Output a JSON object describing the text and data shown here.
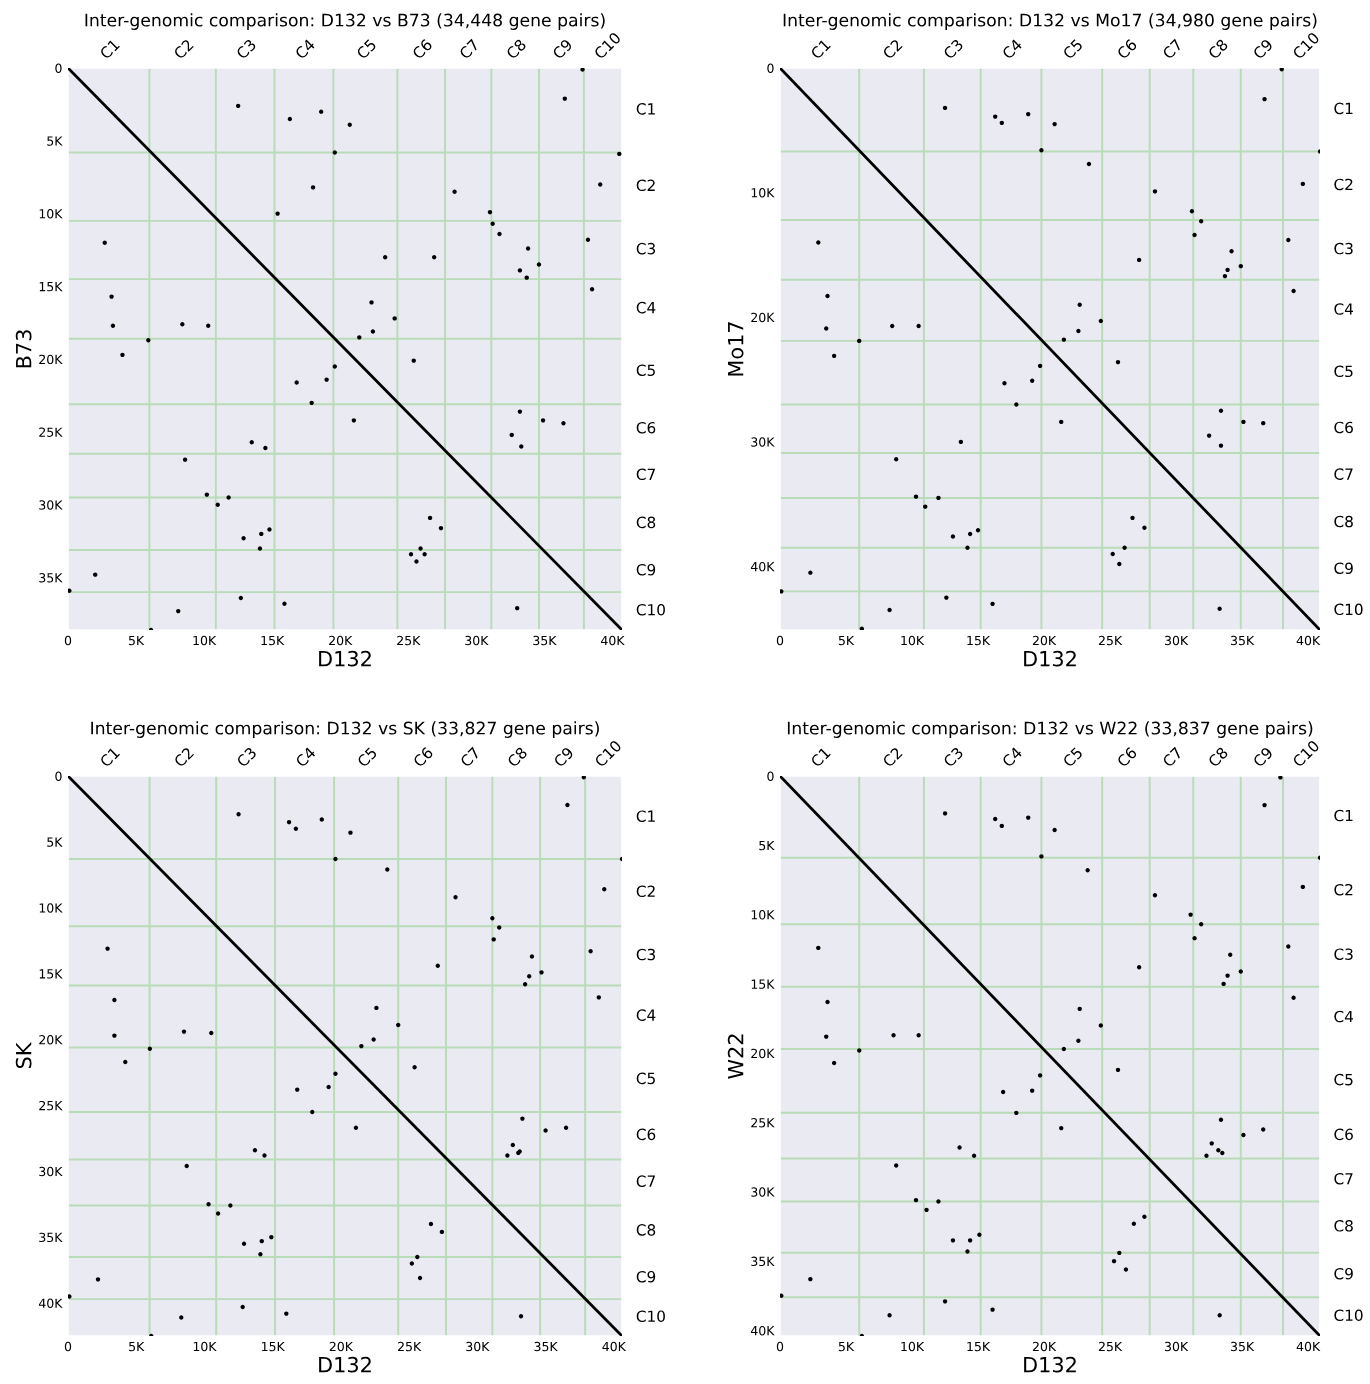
{
  "chart_data": [
    {
      "type": "scatter",
      "title": "Inter-genomic comparison: D132 vs B73 (34,448 gene pairs)",
      "xlabel": "D132",
      "ylabel": "B73",
      "marker": "circle",
      "xlim": [
        0,
        40700
      ],
      "ylim": [
        38600,
        0
      ],
      "xticks": [
        0,
        {
          "value": 5000,
          "label": "5K"
        },
        {
          "value": 10000,
          "label": "10K"
        },
        {
          "value": 15000,
          "label": "15K"
        },
        {
          "value": 20000,
          "label": "20K"
        },
        {
          "value": 25000,
          "label": "25K"
        },
        {
          "value": 30000,
          "label": "30K"
        },
        {
          "value": 35000,
          "label": "35K"
        },
        {
          "value": 40000,
          "label": "40K"
        }
      ],
      "yticks": [
        0,
        {
          "value": 5000,
          "label": "5K"
        },
        {
          "value": 10000,
          "label": "10K"
        },
        {
          "value": 15000,
          "label": "15K"
        },
        {
          "value": 20000,
          "label": "20K"
        },
        {
          "value": 25000,
          "label": "25K"
        },
        {
          "value": 30000,
          "label": "30K"
        },
        {
          "value": 35000,
          "label": "35K"
        }
      ],
      "annotations": [
        "C1",
        "C2",
        "C3",
        "C4",
        "C5",
        "C6",
        "C7",
        "C8",
        "C9",
        "C10",
        "C1",
        "C2",
        "C3",
        "C4",
        "C5",
        "C6",
        "C7",
        "C8",
        "C9",
        "C10"
      ],
      "ref_lines": [
        {
          "axis": "x",
          "value": 5980,
          "color": "#b8dbb8"
        },
        {
          "axis": "x",
          "value": 10860,
          "color": "#b8dbb8"
        },
        {
          "axis": "x",
          "value": 15170,
          "color": "#b8dbb8"
        },
        {
          "axis": "x",
          "value": 19500,
          "color": "#b8dbb8"
        },
        {
          "axis": "x",
          "value": 24200,
          "color": "#b8dbb8"
        },
        {
          "axis": "x",
          "value": 27700,
          "color": "#b8dbb8"
        },
        {
          "axis": "x",
          "value": 31100,
          "color": "#b8dbb8"
        },
        {
          "axis": "x",
          "value": 34600,
          "color": "#b8dbb8"
        },
        {
          "axis": "x",
          "value": 37900,
          "color": "#b8dbb8"
        },
        {
          "axis": "y",
          "value": 5800,
          "color": "#b8dbb8"
        },
        {
          "axis": "y",
          "value": 10500,
          "color": "#b8dbb8"
        },
        {
          "axis": "y",
          "value": 14500,
          "color": "#b8dbb8"
        },
        {
          "axis": "y",
          "value": 18600,
          "color": "#b8dbb8"
        },
        {
          "axis": "y",
          "value": 23100,
          "color": "#b8dbb8"
        },
        {
          "axis": "y",
          "value": 26500,
          "color": "#b8dbb8"
        },
        {
          "axis": "y",
          "value": 29500,
          "color": "#b8dbb8"
        },
        {
          "axis": "y",
          "value": 33100,
          "color": "#b8dbb8"
        },
        {
          "axis": "y",
          "value": 36000,
          "color": "#b8dbb8"
        }
      ],
      "series": [
        {
          "type": "line",
          "marker": "none",
          "color": "#000000",
          "x": [
            0,
            40700
          ],
          "values": [
            0,
            38600
          ]
        },
        {
          "type": "scatter",
          "color": "#000000",
          "x": [
            36500,
            37800,
            19600,
            20700,
            16300,
            18600,
            12500,
            40500,
            39100,
            28400,
            31000,
            31200,
            31700,
            33800,
            34600,
            33200,
            33700,
            38200,
            38500,
            22300,
            24000,
            21400,
            22400,
            19000,
            19600,
            16800,
            17900,
            21000,
            25400,
            4000,
            5900,
            3200,
            3300,
            8400,
            10300,
            2700,
            8600,
            10200,
            11000,
            11800,
            12900,
            14100,
            14200,
            14800,
            100,
            2000,
            6100,
            8100,
            32600,
            33300,
            34900,
            36400,
            33200,
            26600,
            27400,
            25200,
            25600,
            25900,
            26200,
            23300,
            26900,
            18000,
            15400,
            13500,
            14500,
            33000,
            12700,
            15900
          ],
          "values": [
            2100,
            100,
            5800,
            3900,
            3500,
            3000,
            2600,
            5900,
            8000,
            8500,
            9900,
            10700,
            11400,
            12400,
            13500,
            13900,
            14400,
            11800,
            15200,
            16100,
            17200,
            18500,
            18100,
            21400,
            20500,
            21600,
            23000,
            24200,
            20100,
            19700,
            18700,
            15700,
            17700,
            17600,
            17700,
            12000,
            26900,
            29300,
            30000,
            29500,
            32300,
            33000,
            32000,
            31700,
            35900,
            34800,
            38600,
            37300,
            25200,
            26000,
            24200,
            24400,
            23600,
            30900,
            31600,
            33400,
            33900,
            33000,
            33400,
            13000,
            13000,
            8200,
            10000,
            25700,
            26100,
            37100,
            36400,
            36800
          ]
        }
      ]
    },
    {
      "type": "scatter",
      "title": "Inter-genomic comparison: D132 vs Mo17 (34,980 gene pairs)",
      "xlabel": "D132",
      "ylabel": "Mo17",
      "marker": "circle",
      "xlim": [
        0,
        40900
      ],
      "ylim": [
        45100,
        0
      ],
      "xticks": [
        0,
        {
          "value": 5000,
          "label": "5K"
        },
        {
          "value": 10000,
          "label": "10K"
        },
        {
          "value": 15000,
          "label": "15K"
        },
        {
          "value": 20000,
          "label": "20K"
        },
        {
          "value": 25000,
          "label": "25K"
        },
        {
          "value": 30000,
          "label": "30K"
        },
        {
          "value": 35000,
          "label": "35K"
        },
        {
          "value": 40000,
          "label": "40K"
        }
      ],
      "yticks": [
        0,
        {
          "value": 10000,
          "label": "10K"
        },
        {
          "value": 20000,
          "label": "20K"
        },
        {
          "value": 30000,
          "label": "30K"
        },
        {
          "value": 40000,
          "label": "40K"
        }
      ],
      "annotations": [
        "C1",
        "C2",
        "C3",
        "C4",
        "C5",
        "C6",
        "C7",
        "C8",
        "C9",
        "C10",
        "C1",
        "C2",
        "C3",
        "C4",
        "C5",
        "C6",
        "C7",
        "C8",
        "C9",
        "C10"
      ],
      "ref_lines": [
        {
          "axis": "x",
          "value": 6000,
          "color": "#b8dbb8"
        },
        {
          "axis": "x",
          "value": 10900,
          "color": "#b8dbb8"
        },
        {
          "axis": "x",
          "value": 15200,
          "color": "#b8dbb8"
        },
        {
          "axis": "x",
          "value": 19800,
          "color": "#b8dbb8"
        },
        {
          "axis": "x",
          "value": 24400,
          "color": "#b8dbb8"
        },
        {
          "axis": "x",
          "value": 28000,
          "color": "#b8dbb8"
        },
        {
          "axis": "x",
          "value": 31300,
          "color": "#b8dbb8"
        },
        {
          "axis": "x",
          "value": 34900,
          "color": "#b8dbb8"
        },
        {
          "axis": "x",
          "value": 38100,
          "color": "#b8dbb8"
        },
        {
          "axis": "y",
          "value": 6700,
          "color": "#b8dbb8"
        },
        {
          "axis": "y",
          "value": 12200,
          "color": "#b8dbb8"
        },
        {
          "axis": "y",
          "value": 17000,
          "color": "#b8dbb8"
        },
        {
          "axis": "y",
          "value": 21900,
          "color": "#b8dbb8"
        },
        {
          "axis": "y",
          "value": 27000,
          "color": "#b8dbb8"
        },
        {
          "axis": "y",
          "value": 30900,
          "color": "#b8dbb8"
        },
        {
          "axis": "y",
          "value": 34500,
          "color": "#b8dbb8"
        },
        {
          "axis": "y",
          "value": 38500,
          "color": "#b8dbb8"
        },
        {
          "axis": "y",
          "value": 42000,
          "color": "#b8dbb8"
        }
      ],
      "series": [
        {
          "type": "line",
          "marker": "none",
          "color": "#000000",
          "x": [
            0,
            40900
          ],
          "values": [
            0,
            45100
          ]
        },
        {
          "type": "scatter",
          "color": "#000000",
          "x": [
            36700,
            38000,
            19800,
            20800,
            16300,
            16800,
            12500,
            18800,
            40900,
            39600,
            28400,
            31200,
            31900,
            31400,
            34200,
            34900,
            33700,
            33900,
            38500,
            38900,
            22700,
            24300,
            21500,
            22600,
            19100,
            19700,
            17000,
            17900,
            21300,
            25600,
            4100,
            6000,
            3600,
            3500,
            8500,
            10500,
            2900,
            8800,
            10300,
            11000,
            12000,
            13100,
            14200,
            14400,
            15000,
            100,
            2300,
            6200,
            8300,
            32500,
            33400,
            35100,
            36600,
            33400,
            26700,
            27600,
            25200,
            25700,
            26100,
            23400,
            27200,
            13700,
            12600,
            16100,
            33300
          ],
          "values": [
            2500,
            100,
            6600,
            4500,
            3900,
            4400,
            3200,
            3700,
            6700,
            9300,
            9900,
            11500,
            12300,
            13400,
            14700,
            15900,
            16700,
            16200,
            13800,
            17900,
            19000,
            20300,
            21800,
            21100,
            25100,
            23900,
            25300,
            27000,
            28400,
            23600,
            23100,
            21900,
            18300,
            20900,
            20700,
            20700,
            14000,
            31400,
            34400,
            35200,
            34500,
            37600,
            38500,
            37400,
            37100,
            42000,
            40500,
            45000,
            43500,
            29500,
            30300,
            28400,
            28500,
            27500,
            36100,
            36900,
            39000,
            39800,
            38500,
            7700,
            15400,
            30000,
            42500,
            43000,
            43400
          ]
        }
      ]
    },
    {
      "type": "scatter",
      "title": "Inter-genomic comparison: D132 vs SK (33,827 gene pairs)",
      "xlabel": "D132",
      "ylabel": "SK",
      "marker": "circle",
      "xlim": [
        0,
        40600
      ],
      "ylim": [
        42500,
        0
      ],
      "xticks": [
        0,
        {
          "value": 5000,
          "label": "5K"
        },
        {
          "value": 10000,
          "label": "10K"
        },
        {
          "value": 15000,
          "label": "15K"
        },
        {
          "value": 20000,
          "label": "20K"
        },
        {
          "value": 25000,
          "label": "25K"
        },
        {
          "value": 30000,
          "label": "30K"
        },
        {
          "value": 35000,
          "label": "35K"
        },
        {
          "value": 40000,
          "label": "40K"
        }
      ],
      "yticks": [
        0,
        {
          "value": 5000,
          "label": "5K"
        },
        {
          "value": 10000,
          "label": "10K"
        },
        {
          "value": 15000,
          "label": "15K"
        },
        {
          "value": 20000,
          "label": "20K"
        },
        {
          "value": 25000,
          "label": "25K"
        },
        {
          "value": 30000,
          "label": "30K"
        },
        {
          "value": 35000,
          "label": "35K"
        },
        {
          "value": 40000,
          "label": "40K"
        }
      ],
      "annotations": [
        "C1",
        "C2",
        "C3",
        "C4",
        "C5",
        "C6",
        "C7",
        "C8",
        "C9",
        "C10",
        "C1",
        "C2",
        "C3",
        "C4",
        "C5",
        "C6",
        "C7",
        "C8",
        "C9",
        "C10"
      ],
      "ref_lines": [
        {
          "axis": "x",
          "value": 5980,
          "color": "#b8dbb8"
        },
        {
          "axis": "x",
          "value": 10860,
          "color": "#b8dbb8"
        },
        {
          "axis": "x",
          "value": 15170,
          "color": "#b8dbb8"
        },
        {
          "axis": "x",
          "value": 19500,
          "color": "#b8dbb8"
        },
        {
          "axis": "x",
          "value": 24200,
          "color": "#b8dbb8"
        },
        {
          "axis": "x",
          "value": 27700,
          "color": "#b8dbb8"
        },
        {
          "axis": "x",
          "value": 31100,
          "color": "#b8dbb8"
        },
        {
          "axis": "x",
          "value": 34600,
          "color": "#b8dbb8"
        },
        {
          "axis": "x",
          "value": 37900,
          "color": "#b8dbb8"
        },
        {
          "axis": "y",
          "value": 6300,
          "color": "#b8dbb8"
        },
        {
          "axis": "y",
          "value": 11400,
          "color": "#b8dbb8"
        },
        {
          "axis": "y",
          "value": 15900,
          "color": "#b8dbb8"
        },
        {
          "axis": "y",
          "value": 20600,
          "color": "#b8dbb8"
        },
        {
          "axis": "y",
          "value": 25500,
          "color": "#b8dbb8"
        },
        {
          "axis": "y",
          "value": 29100,
          "color": "#b8dbb8"
        },
        {
          "axis": "y",
          "value": 32600,
          "color": "#b8dbb8"
        },
        {
          "axis": "y",
          "value": 36500,
          "color": "#b8dbb8"
        },
        {
          "axis": "y",
          "value": 39700,
          "color": "#b8dbb8"
        }
      ],
      "series": [
        {
          "type": "line",
          "marker": "none",
          "color": "#000000",
          "x": [
            0,
            40600
          ],
          "values": [
            0,
            42500
          ]
        },
        {
          "type": "scatter",
          "color": "#000000",
          "x": [
            36600,
            37800,
            19600,
            20700,
            16200,
            16700,
            12500,
            18600,
            40600,
            39300,
            28400,
            31100,
            31600,
            31200,
            34000,
            34700,
            33500,
            33800,
            38300,
            38900,
            22600,
            24200,
            21500,
            22400,
            19100,
            19600,
            16800,
            17900,
            21100,
            25400,
            4200,
            6000,
            3400,
            3400,
            8500,
            10500,
            2900,
            8700,
            10300,
            11000,
            11900,
            12900,
            14100,
            14200,
            14900,
            100,
            2200,
            6100,
            8300,
            32200,
            33100,
            32600,
            33000,
            35000,
            36500,
            33300,
            26600,
            27400,
            25200,
            25600,
            25800,
            23400,
            27100,
            13700,
            14400,
            12800,
            16000,
            33200
          ],
          "values": [
            2200,
            100,
            6300,
            4300,
            3500,
            4000,
            2900,
            3300,
            6300,
            8600,
            9200,
            10800,
            11500,
            12400,
            13700,
            14900,
            15800,
            15200,
            13300,
            16800,
            17600,
            18900,
            20500,
            20000,
            23600,
            22600,
            23800,
            25500,
            26700,
            22100,
            21700,
            20700,
            17000,
            19700,
            19400,
            19500,
            13100,
            29600,
            32500,
            33200,
            32600,
            35500,
            36300,
            35300,
            35000,
            39500,
            38200,
            42500,
            41100,
            28800,
            28500,
            28000,
            28600,
            26900,
            26700,
            26000,
            34000,
            34600,
            37000,
            36500,
            38100,
            7100,
            14400,
            28400,
            28800,
            40300,
            40800,
            41000
          ]
        }
      ]
    },
    {
      "type": "scatter",
      "title": "Inter-genomic comparison: D132 vs W22 (33,837 gene pairs)",
      "xlabel": "D132",
      "ylabel": "W22",
      "marker": "circle",
      "xlim": [
        0,
        40900
      ],
      "ylim": [
        40400,
        0
      ],
      "xticks": [
        0,
        {
          "value": 5000,
          "label": "5K"
        },
        {
          "value": 10000,
          "label": "10K"
        },
        {
          "value": 15000,
          "label": "15K"
        },
        {
          "value": 20000,
          "label": "20K"
        },
        {
          "value": 25000,
          "label": "25K"
        },
        {
          "value": 30000,
          "label": "30K"
        },
        {
          "value": 35000,
          "label": "35K"
        },
        {
          "value": 40000,
          "label": "40K"
        }
      ],
      "yticks": [
        0,
        {
          "value": 5000,
          "label": "5K"
        },
        {
          "value": 10000,
          "label": "10K"
        },
        {
          "value": 15000,
          "label": "15K"
        },
        {
          "value": 20000,
          "label": "20K"
        },
        {
          "value": 25000,
          "label": "25K"
        },
        {
          "value": 30000,
          "label": "30K"
        },
        {
          "value": 35000,
          "label": "35K"
        },
        {
          "value": 40000,
          "label": "40K"
        }
      ],
      "annotations": [
        "C1",
        "C2",
        "C3",
        "C4",
        "C5",
        "C6",
        "C7",
        "C8",
        "C9",
        "C10",
        "C1",
        "C2",
        "C3",
        "C4",
        "C5",
        "C6",
        "C7",
        "C8",
        "C9",
        "C10"
      ],
      "ref_lines": [
        {
          "axis": "x",
          "value": 6000,
          "color": "#b8dbb8"
        },
        {
          "axis": "x",
          "value": 10900,
          "color": "#b8dbb8"
        },
        {
          "axis": "x",
          "value": 15200,
          "color": "#b8dbb8"
        },
        {
          "axis": "x",
          "value": 19800,
          "color": "#b8dbb8"
        },
        {
          "axis": "x",
          "value": 24400,
          "color": "#b8dbb8"
        },
        {
          "axis": "x",
          "value": 28000,
          "color": "#b8dbb8"
        },
        {
          "axis": "x",
          "value": 31300,
          "color": "#b8dbb8"
        },
        {
          "axis": "x",
          "value": 34900,
          "color": "#b8dbb8"
        },
        {
          "axis": "x",
          "value": 38100,
          "color": "#b8dbb8"
        },
        {
          "axis": "y",
          "value": 5900,
          "color": "#b8dbb8"
        },
        {
          "axis": "y",
          "value": 10700,
          "color": "#b8dbb8"
        },
        {
          "axis": "y",
          "value": 15200,
          "color": "#b8dbb8"
        },
        {
          "axis": "y",
          "value": 19700,
          "color": "#b8dbb8"
        },
        {
          "axis": "y",
          "value": 24300,
          "color": "#b8dbb8"
        },
        {
          "axis": "y",
          "value": 27600,
          "color": "#b8dbb8"
        },
        {
          "axis": "y",
          "value": 30700,
          "color": "#b8dbb8"
        },
        {
          "axis": "y",
          "value": 34400,
          "color": "#b8dbb8"
        },
        {
          "axis": "y",
          "value": 37600,
          "color": "#b8dbb8"
        }
      ],
      "series": [
        {
          "type": "line",
          "marker": "none",
          "color": "#000000",
          "x": [
            0,
            40900
          ],
          "values": [
            0,
            40400
          ]
        },
        {
          "type": "scatter",
          "color": "#000000",
          "x": [
            36700,
            37900,
            19800,
            20800,
            16300,
            16800,
            12500,
            18800,
            40900,
            39600,
            28400,
            31100,
            31900,
            31400,
            34100,
            34900,
            33600,
            33900,
            38500,
            38900,
            22700,
            24300,
            21500,
            22600,
            19100,
            19700,
            16900,
            17900,
            21300,
            25600,
            4100,
            6000,
            3600,
            3500,
            8600,
            10500,
            2900,
            8800,
            10300,
            11100,
            12000,
            13100,
            14200,
            14400,
            15100,
            100,
            2300,
            6200,
            8300,
            32300,
            33200,
            32700,
            33500,
            35100,
            36600,
            33400,
            26800,
            27600,
            25300,
            25700,
            26200,
            23300,
            27200,
            13600,
            14700,
            12500,
            16100,
            33300
          ],
          "values": [
            2100,
            100,
            5800,
            3900,
            3100,
            3600,
            2700,
            3000,
            5900,
            8000,
            8600,
            10000,
            10700,
            11700,
            12900,
            14100,
            15000,
            14400,
            12300,
            16000,
            16800,
            18000,
            19700,
            19100,
            22700,
            21600,
            22800,
            24300,
            25400,
            21200,
            20700,
            19800,
            16300,
            18800,
            18700,
            18700,
            12400,
            28100,
            30600,
            31300,
            30700,
            33500,
            34300,
            33500,
            33100,
            37500,
            36300,
            40400,
            38900,
            27400,
            27000,
            26500,
            27200,
            25900,
            25500,
            24800,
            32300,
            31800,
            35000,
            34400,
            35600,
            6800,
            13800,
            26800,
            27400,
            37900,
            38500,
            38900
          ]
        }
      ]
    }
  ]
}
